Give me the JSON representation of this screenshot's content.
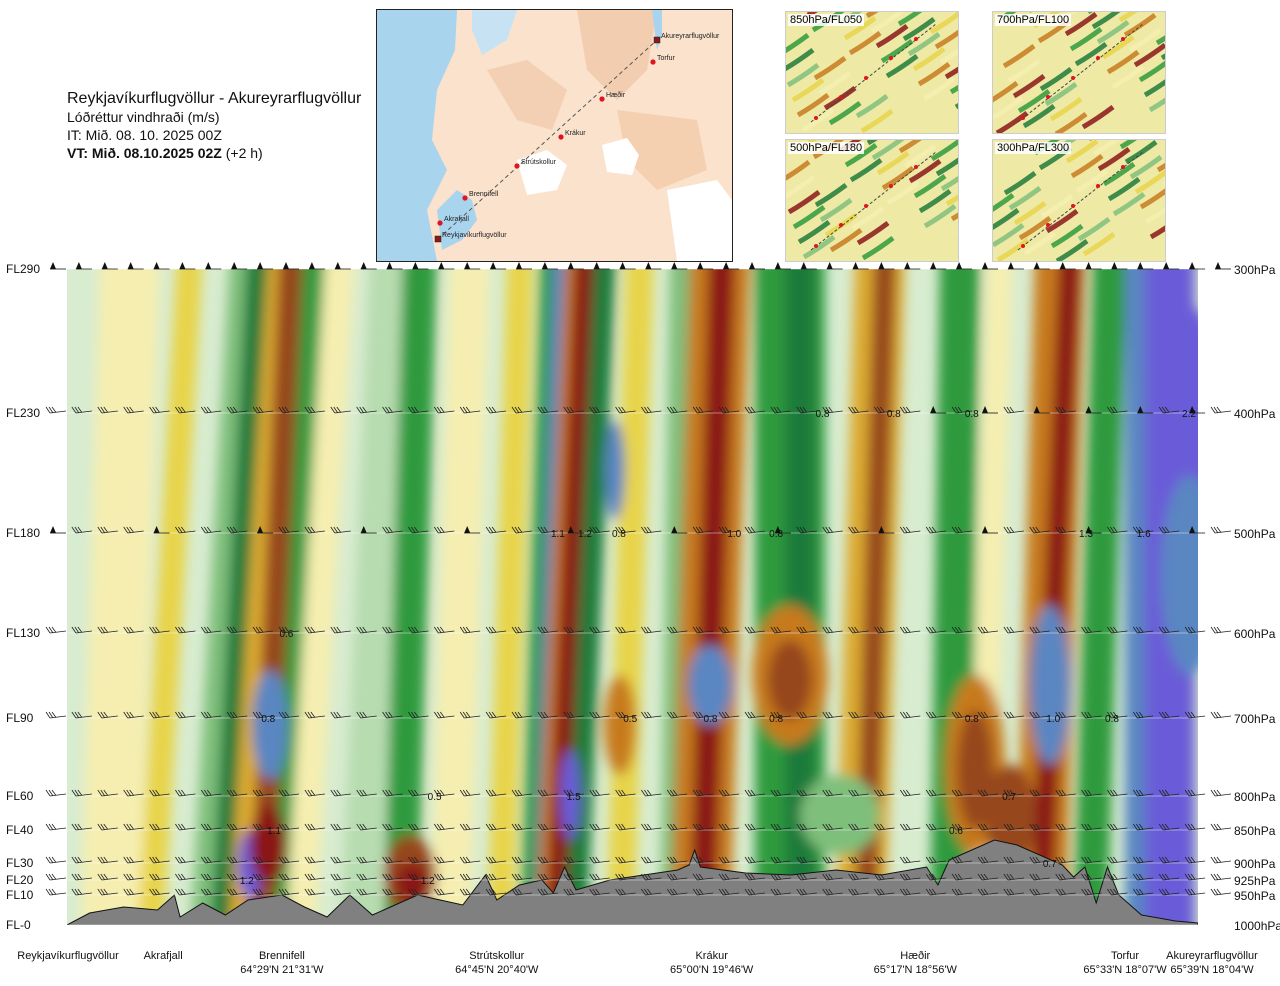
{
  "header": {
    "route": "Reykjavíkurflugvöllur - Akureyrarflugvöllur",
    "variable": "Lóðréttur vindhraði (m/s)",
    "issue_time": "IT: Mið. 08. 10. 2025 00Z",
    "valid_time": "VT: Mið. 08.10.2025 02Z",
    "valid_offset": "(+2 h)"
  },
  "map": {
    "waypoints": [
      {
        "label": "Akureyrarflugvöllur"
      },
      {
        "label": "Torfur"
      },
      {
        "label": "Hæðir"
      },
      {
        "label": "Krákur"
      },
      {
        "label": "Strútskollur"
      },
      {
        "label": "Brennifell"
      },
      {
        "label": "Akrafjall"
      },
      {
        "label": "Reykjavíkurflugvöllur"
      }
    ]
  },
  "thumbnails": [
    {
      "label": "850hPa/FL050"
    },
    {
      "label": "700hPa/FL100"
    },
    {
      "label": "500hPa/FL180"
    },
    {
      "label": "300hPa/FL300"
    }
  ],
  "chart_data": {
    "type": "heatmap",
    "title": "Lóðréttur vindhraði (m/s)",
    "levels": [
      {
        "fl": "FL290",
        "hpa": "300hPa",
        "p": 300
      },
      {
        "fl": "FL230",
        "hpa": "400hPa",
        "p": 400
      },
      {
        "fl": "FL180",
        "hpa": "500hPa",
        "p": 500
      },
      {
        "fl": "FL130",
        "hpa": "600hPa",
        "p": 600
      },
      {
        "fl": "FL90",
        "hpa": "700hPa",
        "p": 700
      },
      {
        "fl": "FL60",
        "hpa": "800hPa",
        "p": 800
      },
      {
        "fl": "FL40",
        "hpa": "850hPa",
        "p": 850
      },
      {
        "fl": "FL30",
        "hpa": "900hPa",
        "p": 900
      },
      {
        "fl": "FL20",
        "hpa": "925hPa",
        "p": 925
      },
      {
        "fl": "FL10",
        "hpa": "950hPa",
        "p": 950
      },
      {
        "fl": "FL-0",
        "hpa": "1000hPa",
        "p": 1000
      }
    ],
    "locations": [
      {
        "name": "Reykjavíkurflugvöllur",
        "coord": "",
        "dist": 0.0
      },
      {
        "name": "Akrafjall",
        "coord": "",
        "dist": 0.085
      },
      {
        "name": "Brennifell",
        "coord": "64°29'N 21°31'W",
        "dist": 0.19
      },
      {
        "name": "Strútskollur",
        "coord": "64°45'N 20°40'W",
        "dist": 0.38
      },
      {
        "name": "Krákur",
        "coord": "65°00'N 19°46'W",
        "dist": 0.57
      },
      {
        "name": "Hæðir",
        "coord": "65°17'N 18°56'W",
        "dist": 0.75
      },
      {
        "name": "Torfur",
        "coord": "65°33'N 18°07'W",
        "dist": 0.93
      },
      {
        "name": "Akureyrarflugvöllur",
        "coord": "65°39'N 18°04'W",
        "dist": 1.0
      }
    ],
    "value_labels": [
      {
        "text": "0.8",
        "dist": 0.668,
        "p": 400
      },
      {
        "text": "0.8",
        "dist": 0.731,
        "p": 400
      },
      {
        "text": "0.8",
        "dist": 0.8,
        "p": 400
      },
      {
        "text": "2.2",
        "dist": 0.992,
        "p": 400
      },
      {
        "text": "1.1",
        "dist": 0.434,
        "p": 500
      },
      {
        "text": "1.2",
        "dist": 0.458,
        "p": 500
      },
      {
        "text": "0.8",
        "dist": 0.488,
        "p": 500
      },
      {
        "text": "1.0",
        "dist": 0.59,
        "p": 500
      },
      {
        "text": "0.8",
        "dist": 0.627,
        "p": 500
      },
      {
        "text": "1.3",
        "dist": 0.901,
        "p": 500
      },
      {
        "text": "1.6",
        "dist": 0.952,
        "p": 500
      },
      {
        "text": "0.6",
        "dist": 0.194,
        "p": 600
      },
      {
        "text": "0.8",
        "dist": 0.178,
        "p": 700
      },
      {
        "text": "0.5",
        "dist": 0.498,
        "p": 700
      },
      {
        "text": "0.8",
        "dist": 0.569,
        "p": 700
      },
      {
        "text": "0.8",
        "dist": 0.627,
        "p": 700
      },
      {
        "text": "0.8",
        "dist": 0.8,
        "p": 700
      },
      {
        "text": "1.0",
        "dist": 0.872,
        "p": 700
      },
      {
        "text": "0.8",
        "dist": 0.924,
        "p": 700
      },
      {
        "text": "0.5",
        "dist": 0.325,
        "p": 800
      },
      {
        "text": "1.5",
        "dist": 0.448,
        "p": 800
      },
      {
        "text": "0.7",
        "dist": 0.833,
        "p": 800
      },
      {
        "text": "1.1",
        "dist": 0.183,
        "p": 850
      },
      {
        "text": "0.6",
        "dist": 0.786,
        "p": 850
      },
      {
        "text": "0.7",
        "dist": 0.869,
        "p": 900
      },
      {
        "text": "1.2",
        "dist": 0.159,
        "p": 925
      },
      {
        "text": "1.2",
        "dist": 0.319,
        "p": 925
      }
    ],
    "colors": {
      "strong_down": "#6b5cd8",
      "down_blue": "#5a86c2",
      "down_dark_green": "#1f7a3a",
      "down_green": "#2f9a3c",
      "down_mid_green": "#7fbf7b",
      "down_light_green": "#b7dcb0",
      "neutral": "#d8ecd0",
      "up_cream": "#f5eeb0",
      "up_yellow": "#e8d44a",
      "up_gold": "#dcaa30",
      "up_orange": "#c77a1e",
      "up_brown": "#96461c",
      "strong_up": "#8a1618",
      "terrain": "#808080"
    },
    "grid": true
  }
}
